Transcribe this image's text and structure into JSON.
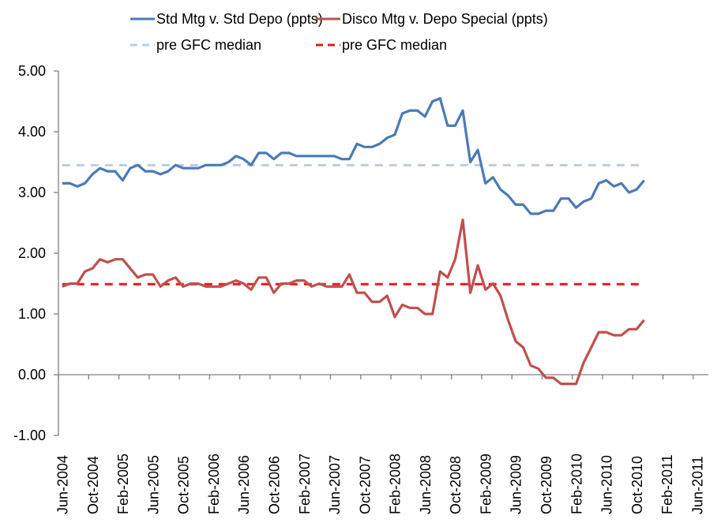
{
  "chart_data": {
    "type": "line",
    "title": "",
    "xlabel": "",
    "ylabel": "",
    "ylim": [
      -1.0,
      5.0
    ],
    "y_ticks": [
      "5.00",
      "4.00",
      "3.00",
      "2.00",
      "1.00",
      "0.00",
      "-1.00"
    ],
    "y_tick_values": [
      5,
      4,
      3,
      2,
      1,
      0,
      -1
    ],
    "grid": false,
    "legend_position": "top",
    "x_axis_start": "Jun-2004",
    "x_axis_month_count": 86,
    "x_label_every_months": 4,
    "x_tick_labels": [
      "Jun-2004",
      "Oct-2004",
      "Feb-2005",
      "Jun-2005",
      "Oct-2005",
      "Feb-2006",
      "Jun-2006",
      "Oct-2006",
      "Feb-2007",
      "Jun-2007",
      "Oct-2007",
      "Feb-2008",
      "Jun-2008",
      "Oct-2008",
      "Feb-2009",
      "Jun-2009",
      "Oct-2009",
      "Feb-2010",
      "Jun-2010",
      "Oct-2010",
      "Feb-2011",
      "Jun-2011"
    ],
    "x_data_range": [
      "Jun-2004",
      "Nov-2010"
    ],
    "series": [
      {
        "name": "Std Mtg v. Std Depo (ppts)",
        "color": "#4A7AB8",
        "style": "solid",
        "values": [
          3.15,
          3.15,
          3.1,
          3.15,
          3.3,
          3.4,
          3.35,
          3.35,
          3.2,
          3.4,
          3.45,
          3.35,
          3.35,
          3.3,
          3.35,
          3.45,
          3.4,
          3.4,
          3.4,
          3.45,
          3.45,
          3.45,
          3.5,
          3.6,
          3.55,
          3.45,
          3.65,
          3.65,
          3.55,
          3.65,
          3.65,
          3.6,
          3.6,
          3.6,
          3.6,
          3.6,
          3.6,
          3.55,
          3.55,
          3.8,
          3.75,
          3.75,
          3.8,
          3.9,
          3.95,
          4.3,
          4.35,
          4.35,
          4.25,
          4.5,
          4.55,
          4.1,
          4.1,
          4.35,
          3.5,
          3.7,
          3.15,
          3.25,
          3.05,
          2.95,
          2.8,
          2.8,
          2.65,
          2.65,
          2.7,
          2.7,
          2.9,
          2.9,
          2.75,
          2.85,
          2.9,
          3.15,
          3.2,
          3.1,
          3.15,
          3.0,
          3.05,
          3.2
        ]
      },
      {
        "name": "Disco Mtg v. Depo Special (ppts)",
        "color": "#C0504D",
        "style": "solid",
        "values": [
          1.45,
          1.5,
          1.5,
          1.7,
          1.75,
          1.9,
          1.85,
          1.9,
          1.9,
          1.75,
          1.6,
          1.65,
          1.65,
          1.45,
          1.55,
          1.6,
          1.45,
          1.5,
          1.5,
          1.45,
          1.45,
          1.45,
          1.5,
          1.55,
          1.5,
          1.4,
          1.6,
          1.6,
          1.35,
          1.5,
          1.5,
          1.55,
          1.55,
          1.45,
          1.5,
          1.45,
          1.45,
          1.45,
          1.65,
          1.35,
          1.35,
          1.2,
          1.2,
          1.3,
          0.95,
          1.15,
          1.1,
          1.1,
          1.0,
          1.0,
          1.7,
          1.6,
          1.9,
          2.55,
          1.35,
          1.8,
          1.4,
          1.5,
          1.3,
          0.9,
          0.55,
          0.45,
          0.15,
          0.1,
          -0.05,
          -0.05,
          -0.15,
          -0.15,
          -0.15,
          0.2,
          0.45,
          0.7,
          0.7,
          0.65,
          0.65,
          0.75,
          0.75,
          0.9
        ]
      },
      {
        "name": "pre GFC median",
        "color": "#B9CDE5",
        "style": "dashed",
        "constant": 3.45
      },
      {
        "name": "pre GFC median",
        "color": "#E31A1C",
        "style": "dashed",
        "constant": 1.49
      }
    ],
    "legend": [
      {
        "label": "Std Mtg v. Std Depo (ppts)",
        "color": "#4A7AB8",
        "style": "solid"
      },
      {
        "label": "Disco Mtg v. Depo Special (ppts)",
        "color": "#C0504D",
        "style": "solid"
      },
      {
        "label": "pre GFC median",
        "color": "#B9CDE5",
        "style": "dashed"
      },
      {
        "label": "pre GFC median",
        "color": "#E31A1C",
        "style": "dashed"
      }
    ],
    "axis_color": "#808080"
  }
}
